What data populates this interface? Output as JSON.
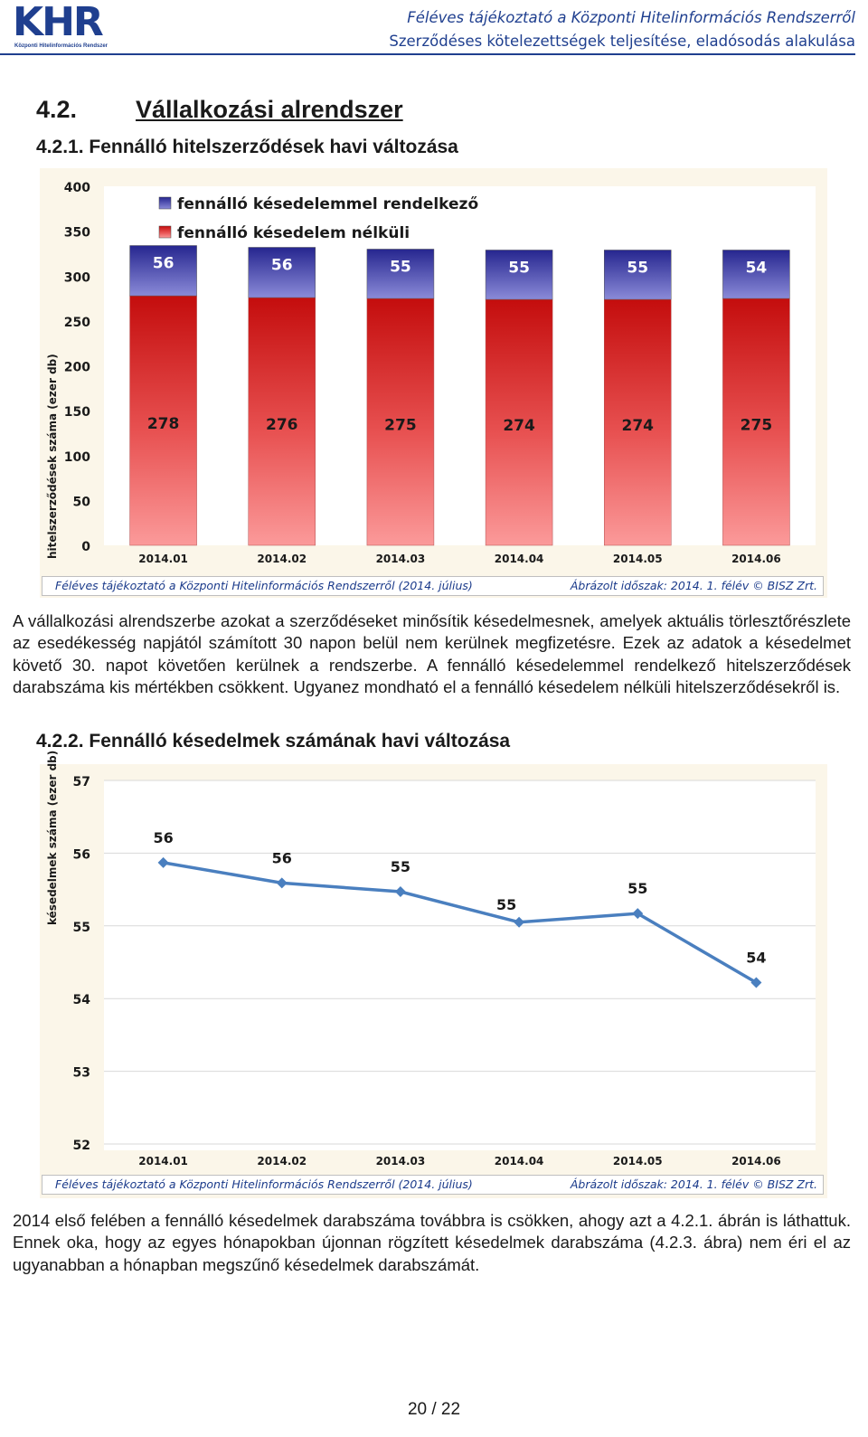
{
  "header": {
    "logo_text": "KHR",
    "logo_sub": "Központi Hitelinformációs Rendszer",
    "line1": "Féléves tájékoztató a Központi Hitelinformációs Rendszerről",
    "line2": "Szerződéses kötelezettségek teljesítése, eladósodás alakulása"
  },
  "section": {
    "number": "4.2.",
    "title": "Vállalkozási alrendszer"
  },
  "sub1": {
    "title": "4.2.1. Fennálló hitelszerződések havi változása"
  },
  "sub2": {
    "title": "4.2.2. Fennálló késedelmek számának havi változása"
  },
  "chart_footer": {
    "left": "Féléves tájékoztató a Központi Hitelinformációs Rendszerről (2014. július)",
    "right": "Ábrázolt időszak: 2014. 1. félév © BISZ Zrt."
  },
  "paragraph1": "A vállalkozási alrendszerbe azokat a szerződéseket minősítik késedelmesnek, amelyek aktuális törlesztőrészlete az esedékesség napjától számított 30 napon belül nem kerülnek megfizetésre. Ezek az adatok a késedelmet követő 30. napot követően kerülnek a rendszerbe. A fennálló késedelemmel rendelkező hitelszerződések darabszáma kis mértékben csökkent. Ugyanez mondható el a fennálló késedelem nélküli hitelszerződésekről is.",
  "paragraph2": "2014 első felében a fennálló késedelmek darabszáma továbbra is csökken, ahogy azt a 4.2.1. ábrán is láthattuk. Ennek oka, hogy az egyes hónapokban újonnan rögzített késedelmek darabszáma (4.2.3. ábra) nem éri el az ugyanabban a hónapban megszűnő késedelmek darabszámát.",
  "page_number": "20 / 22",
  "colors": {
    "brand": "#1f3f8f",
    "bar_red": "#d01c1c",
    "bar_blue": "#2a2a96",
    "line": "#4a7fbf",
    "chart_bg": "#fbf6e9"
  },
  "chart_data": [
    {
      "type": "bar",
      "stacked": true,
      "ylabel": "hitelszerződések száma (ezer db)",
      "ylim": [
        0,
        400
      ],
      "yticks": [
        0,
        50,
        100,
        150,
        200,
        250,
        300,
        350,
        400
      ],
      "categories": [
        "2014.01",
        "2014.02",
        "2014.03",
        "2014.04",
        "2014.05",
        "2014.06"
      ],
      "legend_position": "top-left",
      "series": [
        {
          "name": "fennálló késedelem nélküli",
          "values": [
            278,
            276,
            275,
            274,
            274,
            275
          ]
        },
        {
          "name": "fennálló késedelemmel rendelkező",
          "values": [
            56,
            56,
            55,
            55,
            55,
            54
          ]
        }
      ]
    },
    {
      "type": "line",
      "ylabel": "késedelmek száma (ezer db)",
      "ylim": [
        52,
        57
      ],
      "yticks": [
        52,
        53,
        54,
        55,
        56,
        57
      ],
      "categories": [
        "2014.01",
        "2014.02",
        "2014.03",
        "2014.04",
        "2014.05",
        "2014.06"
      ],
      "values": [
        55.87,
        55.59,
        55.47,
        55.05,
        55.17,
        54.22
      ],
      "labels": [
        "56",
        "56",
        "55",
        "55",
        "55",
        "54"
      ]
    }
  ]
}
